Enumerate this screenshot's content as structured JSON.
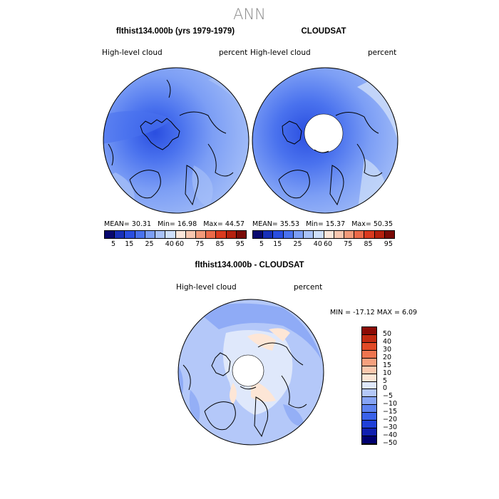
{
  "figure": {
    "title": "ANN",
    "panels": [
      {
        "id": "model",
        "title": "flthist134.000b (yrs 1979-1979)",
        "left_label": "High-level cloud",
        "right_label": "percent",
        "stats": {
          "mean_label": "MEAN=",
          "mean": "30.31",
          "min_label": "Min=",
          "min": "16.98",
          "max_label": "Max=",
          "max": "44.57"
        },
        "pole_hole": false
      },
      {
        "id": "obs",
        "title": "CLOUDSAT",
        "left_label": "High-level cloud",
        "right_label": "percent",
        "stats": {
          "mean_label": "MEAN=",
          "mean": "35.53",
          "min_label": "Min=",
          "min": "15.37",
          "max_label": "Max=",
          "max": "50.35"
        },
        "pole_hole": true
      },
      {
        "id": "diff",
        "title": "flthist134.000b - CLOUDSAT",
        "left_label": "High-level cloud",
        "right_label": "percent",
        "stats_text": "MIN = -17.12  MAX =   6.09",
        "pole_hole": true
      }
    ],
    "colorbar_top": {
      "colors": [
        "#08086e",
        "#1830b8",
        "#2a4ee0",
        "#4a72ee",
        "#7c9ef5",
        "#a9c2f8",
        "#cfdffa",
        "#fbe6da",
        "#f8c7b0",
        "#f29a7a",
        "#ea6a4a",
        "#d93a1f",
        "#b5200e",
        "#7a0a06"
      ],
      "tick_labels": [
        "5",
        "15",
        "25",
        "40",
        "60",
        "75",
        "85",
        "95"
      ]
    },
    "colorbar_diff": {
      "colors": [
        "#000070",
        "#1020b0",
        "#2040d8",
        "#3a62ea",
        "#5d82f0",
        "#86a4f5",
        "#b4c8f9",
        "#dfe8fb",
        "#fde6d6",
        "#fac8ae",
        "#f5a07e",
        "#ee7550",
        "#e14a26",
        "#c22a10",
        "#8c0a04"
      ],
      "tick_labels": [
        "50",
        "40",
        "30",
        "20",
        "15",
        "10",
        "5",
        "0",
        "−5",
        "−10",
        "−15",
        "−20",
        "−30",
        "−40",
        "−50"
      ]
    }
  }
}
